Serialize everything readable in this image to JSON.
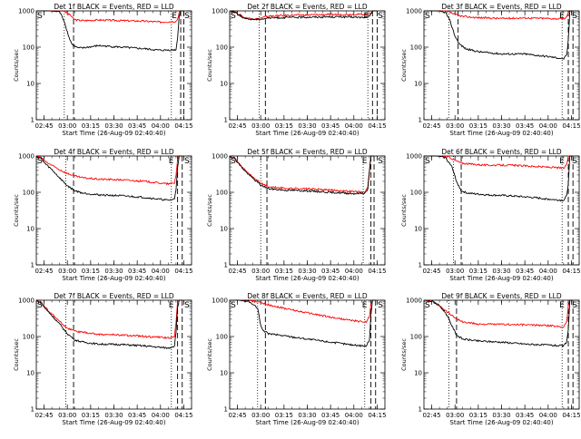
{
  "chart_data": [
    {
      "type": "line",
      "title": "Det 1f BLACK = Events, RED = LLD",
      "xlabel": "Start Time (26-Aug-09 02:40:40)",
      "ylabel": "Counts/sec",
      "y_scale": "log",
      "ylim": [
        1,
        1000
      ],
      "xlim": [
        "02:40",
        "04:20"
      ],
      "x_ticks": [
        "02:45",
        "03:00",
        "03:15",
        "03:30",
        "03:45",
        "04:00",
        "04:15"
      ],
      "y_ticks": [
        "1",
        "10",
        "100",
        "1000"
      ],
      "annotations": [
        "S",
        "E",
        "S"
      ],
      "dotted_lines": [
        "02:58",
        "04:07"
      ],
      "dashed_lines": [
        "03:04",
        "04:13",
        "04:15"
      ],
      "series": [
        {
          "color": "#ff0000",
          "x": [
            "02:40",
            "02:48",
            "02:58",
            "03:02",
            "03:04",
            "03:06",
            "03:10",
            "03:20",
            "03:35",
            "03:50",
            "04:00",
            "04:10",
            "04:11",
            "04:12",
            "04:13",
            "04:14",
            "04:15"
          ],
          "y": [
            1000,
            1000,
            980,
            760,
            600,
            560,
            540,
            560,
            540,
            520,
            490,
            520,
            600,
            900,
            1000,
            1000,
            1000
          ]
        },
        {
          "color": "#000000",
          "x": [
            "02:40",
            "02:48",
            "02:55",
            "02:58",
            "03:01",
            "03:03",
            "03:05",
            "03:07",
            "03:10",
            "03:20",
            "03:35",
            "03:50",
            "04:00",
            "04:10",
            "04:11",
            "04:12",
            "04:13",
            "04:14",
            "04:15"
          ],
          "y": [
            1000,
            1000,
            950,
            520,
            190,
            120,
            105,
            95,
            95,
            110,
            100,
            90,
            82,
            85,
            180,
            700,
            1000,
            1000,
            1000
          ]
        }
      ]
    },
    {
      "type": "line",
      "title": "Det 2f BLACK = Events, RED = LLD",
      "xlabel": "Start Time (26-Aug-09 02:40:40)",
      "ylabel": "Counts/sec",
      "y_scale": "log",
      "ylim": [
        1,
        1000
      ],
      "xlim": [
        "02:40",
        "04:20"
      ],
      "x_ticks": [
        "02:45",
        "03:00",
        "03:15",
        "03:30",
        "03:45",
        "04:00",
        "04:15"
      ],
      "y_ticks": [
        "1",
        "10",
        "100",
        "1000"
      ],
      "annotations": [
        "S",
        "E",
        "S"
      ],
      "dotted_lines": [
        "02:59",
        "04:09"
      ],
      "dashed_lines": [
        "03:03",
        "04:12",
        "04:15"
      ],
      "series": [
        {
          "color": "#ff0000",
          "x": [
            "02:40",
            "02:43",
            "02:46",
            "02:50",
            "02:58",
            "03:05",
            "03:20",
            "03:35",
            "03:50",
            "04:05",
            "04:09",
            "04:11",
            "04:12",
            "04:13",
            "04:15"
          ],
          "y": [
            1000,
            960,
            800,
            640,
            600,
            720,
            760,
            780,
            800,
            800,
            820,
            900,
            1000,
            1000,
            1000
          ]
        },
        {
          "color": "#000000",
          "x": [
            "02:40",
            "02:43",
            "02:46",
            "02:50",
            "02:58",
            "03:05",
            "03:20",
            "03:35",
            "03:50",
            "04:05",
            "04:09",
            "04:11",
            "04:12",
            "04:13",
            "04:15"
          ],
          "y": [
            1000,
            950,
            780,
            600,
            580,
            640,
            660,
            680,
            690,
            660,
            680,
            800,
            1000,
            1000,
            1000
          ]
        }
      ]
    },
    {
      "type": "line",
      "title": "Det 3f BLACK = Events, RED = LLD",
      "xlabel": "Start Time (26-Aug-09 02:40:40)",
      "ylabel": "Counts/sec",
      "y_scale": "log",
      "ylim": [
        1,
        1000
      ],
      "xlim": [
        "02:40",
        "04:20"
      ],
      "x_ticks": [
        "02:45",
        "03:00",
        "03:15",
        "03:30",
        "03:45",
        "04:00",
        "04:15"
      ],
      "y_ticks": [
        "1",
        "10",
        "100",
        "1000"
      ],
      "annotations": [
        "S",
        "E",
        "S"
      ],
      "dotted_lines": [
        "02:56",
        "04:09"
      ],
      "dashed_lines": [
        "03:02",
        "04:13",
        "04:16"
      ],
      "series": [
        {
          "color": "#ff0000",
          "x": [
            "02:40",
            "02:48",
            "02:55",
            "02:57",
            "03:00",
            "03:05",
            "03:15",
            "03:30",
            "03:45",
            "04:00",
            "04:10",
            "04:12",
            "04:13",
            "04:14",
            "04:16"
          ],
          "y": [
            1000,
            1000,
            960,
            900,
            800,
            700,
            650,
            620,
            640,
            620,
            600,
            680,
            900,
            1000,
            1000
          ]
        },
        {
          "color": "#000000",
          "x": [
            "02:40",
            "02:48",
            "02:54",
            "02:57",
            "03:00",
            "03:03",
            "03:07",
            "03:15",
            "03:30",
            "03:45",
            "04:00",
            "04:10",
            "04:12",
            "04:13",
            "04:14",
            "04:16"
          ],
          "y": [
            1000,
            1000,
            900,
            500,
            200,
            120,
            90,
            75,
            65,
            65,
            55,
            48,
            60,
            160,
            1000,
            1000
          ]
        }
      ]
    },
    {
      "type": "line",
      "title": "Det 4f BLACK = Events, RED = LLD",
      "xlabel": "Start Time (26-Aug-09 02:40:40)",
      "ylabel": "Counts/sec",
      "y_scale": "log",
      "ylim": [
        1,
        1000
      ],
      "xlim": [
        "02:40",
        "04:20"
      ],
      "x_ticks": [
        "02:45",
        "03:00",
        "03:15",
        "03:30",
        "03:45",
        "04:00",
        "04:15"
      ],
      "y_ticks": [
        "1",
        "10",
        "100",
        "1000"
      ],
      "annotations": [
        "S",
        "E",
        "S"
      ],
      "dotted_lines": [
        "02:59",
        "04:07"
      ],
      "dashed_lines": [
        "03:04",
        "04:11",
        "04:14"
      ],
      "series": [
        {
          "color": "#ff0000",
          "x": [
            "02:40",
            "02:43",
            "02:46",
            "02:50",
            "02:55",
            "03:00",
            "03:05",
            "03:10",
            "03:20",
            "03:35",
            "03:50",
            "04:05",
            "04:09",
            "04:10",
            "04:11",
            "04:12",
            "04:14"
          ],
          "y": [
            1000,
            900,
            700,
            550,
            420,
            330,
            280,
            250,
            230,
            220,
            200,
            170,
            180,
            300,
            800,
            1000,
            1000
          ]
        },
        {
          "color": "#000000",
          "x": [
            "02:40",
            "02:43",
            "02:46",
            "02:50",
            "02:55",
            "03:00",
            "03:05",
            "03:10",
            "03:20",
            "03:35",
            "03:50",
            "04:05",
            "04:09",
            "04:10",
            "04:11",
            "04:12",
            "04:14"
          ],
          "y": [
            1000,
            850,
            600,
            420,
            250,
            150,
            110,
            95,
            85,
            80,
            72,
            60,
            65,
            120,
            500,
            1000,
            1000
          ]
        }
      ]
    },
    {
      "type": "line",
      "title": "Det 5f BLACK = Events, RED = LLD",
      "xlabel": "Start Time (26-Aug-09 02:40:40)",
      "ylabel": "Counts/sec",
      "y_scale": "log",
      "ylim": [
        1,
        1000
      ],
      "xlim": [
        "02:40",
        "04:20"
      ],
      "x_ticks": [
        "02:45",
        "03:00",
        "03:15",
        "03:30",
        "03:45",
        "04:00",
        "04:15"
      ],
      "y_ticks": [
        "1",
        "10",
        "100",
        "1000"
      ],
      "annotations": [
        "S",
        "E",
        "S"
      ],
      "dotted_lines": [
        "03:00",
        "04:06"
      ],
      "dashed_lines": [
        "03:04",
        "04:11",
        "04:13"
      ],
      "series": [
        {
          "color": "#ff0000",
          "x": [
            "02:40",
            "02:43",
            "02:46",
            "02:50",
            "02:55",
            "03:00",
            "03:05",
            "03:15",
            "03:30",
            "03:45",
            "04:00",
            "04:07",
            "04:09",
            "04:10",
            "04:11",
            "04:13"
          ],
          "y": [
            1000,
            900,
            620,
            400,
            260,
            180,
            140,
            130,
            125,
            115,
            105,
            100,
            140,
            400,
            1000,
            1000
          ]
        },
        {
          "color": "#000000",
          "x": [
            "02:40",
            "02:43",
            "02:46",
            "02:50",
            "02:55",
            "03:00",
            "03:05",
            "03:15",
            "03:30",
            "03:45",
            "04:00",
            "04:07",
            "04:09",
            "04:10",
            "04:11",
            "04:13"
          ],
          "y": [
            1000,
            880,
            600,
            380,
            240,
            160,
            125,
            115,
            110,
            100,
            92,
            95,
            120,
            350,
            1000,
            1000
          ]
        }
      ]
    },
    {
      "type": "line",
      "title": "Det 6f BLACK = Events, RED = LLD",
      "xlabel": "Start Time (26-Aug-09 02:40:40)",
      "ylabel": "Counts/sec",
      "y_scale": "log",
      "ylim": [
        1,
        1000
      ],
      "xlim": [
        "02:40",
        "04:20"
      ],
      "x_ticks": [
        "02:45",
        "03:00",
        "03:15",
        "03:30",
        "03:45",
        "04:00",
        "04:15"
      ],
      "y_ticks": [
        "1",
        "10",
        "100",
        "1000"
      ],
      "annotations": [
        "S",
        "E",
        "S"
      ],
      "dotted_lines": [
        "02:59",
        "04:09"
      ],
      "dashed_lines": [
        "03:04",
        "04:13",
        "04:16"
      ],
      "series": [
        {
          "color": "#ff0000",
          "x": [
            "02:40",
            "02:48",
            "02:56",
            "03:00",
            "03:04",
            "03:10",
            "03:20",
            "03:35",
            "03:50",
            "04:05",
            "04:10",
            "04:12",
            "04:13",
            "04:14",
            "04:16"
          ],
          "y": [
            1000,
            1000,
            950,
            760,
            640,
            600,
            560,
            560,
            520,
            480,
            460,
            600,
            1000,
            1000,
            1000
          ]
        },
        {
          "color": "#000000",
          "x": [
            "02:40",
            "02:48",
            "02:54",
            "02:58",
            "03:01",
            "03:04",
            "03:08",
            "03:20",
            "03:35",
            "03:50",
            "04:05",
            "04:10",
            "04:12",
            "04:13",
            "04:14",
            "04:16"
          ],
          "y": [
            1000,
            1000,
            900,
            500,
            200,
            110,
            95,
            85,
            80,
            72,
            62,
            60,
            80,
            180,
            1000,
            1000
          ]
        }
      ]
    },
    {
      "type": "line",
      "title": "Det 7f BLACK = Events, RED = LLD",
      "xlabel": "Start Time (26-Aug-09 02:40:40)",
      "ylabel": "Counts/sec",
      "y_scale": "log",
      "ylim": [
        1,
        1000
      ],
      "xlim": [
        "02:40",
        "04:20"
      ],
      "x_ticks": [
        "02:45",
        "03:00",
        "03:15",
        "03:30",
        "03:45",
        "04:00",
        "04:15"
      ],
      "y_ticks": [
        "1",
        "10",
        "100",
        "1000"
      ],
      "annotations": [
        "S",
        "E",
        "S"
      ],
      "dotted_lines": [
        "02:59",
        "04:07"
      ],
      "dashed_lines": [
        "03:04",
        "04:11",
        "04:14"
      ],
      "series": [
        {
          "color": "#ff0000",
          "x": [
            "02:40",
            "02:43",
            "02:46",
            "02:50",
            "02:55",
            "03:00",
            "03:05",
            "03:10",
            "03:20",
            "03:35",
            "03:50",
            "04:05",
            "04:09",
            "04:10",
            "04:11",
            "04:12",
            "04:14"
          ],
          "y": [
            1000,
            880,
            620,
            420,
            260,
            170,
            140,
            130,
            115,
            110,
            100,
            92,
            100,
            250,
            900,
            1000,
            1000
          ]
        },
        {
          "color": "#000000",
          "x": [
            "02:40",
            "02:43",
            "02:46",
            "02:50",
            "02:55",
            "03:00",
            "03:05",
            "03:10",
            "03:20",
            "03:35",
            "03:50",
            "04:05",
            "04:09",
            "04:10",
            "04:11",
            "04:12",
            "04:14"
          ],
          "y": [
            1000,
            850,
            580,
            380,
            220,
            120,
            80,
            70,
            62,
            60,
            55,
            48,
            55,
            130,
            600,
            1000,
            1000
          ]
        }
      ]
    },
    {
      "type": "line",
      "title": "Det 8f BLACK = Events, RED = LLD",
      "xlabel": "Start Time (26-Aug-09 02:40:40)",
      "ylabel": "Counts/sec",
      "y_scale": "log",
      "ylim": [
        1,
        1000
      ],
      "xlim": [
        "02:40",
        "04:20"
      ],
      "x_ticks": [
        "02:45",
        "03:00",
        "03:15",
        "03:30",
        "03:45",
        "04:00",
        "04:15"
      ],
      "y_ticks": [
        "1",
        "10",
        "100",
        "1000"
      ],
      "annotations": [
        "S",
        "E",
        "S"
      ],
      "dotted_lines": [
        "02:58",
        "04:07"
      ],
      "dashed_lines": [
        "03:03",
        "04:11",
        "04:14"
      ],
      "series": [
        {
          "color": "#ff0000",
          "x": [
            "02:40",
            "02:45",
            "02:52",
            "02:58",
            "03:02",
            "03:05",
            "03:15",
            "03:30",
            "03:45",
            "04:00",
            "04:08",
            "04:10",
            "04:11",
            "04:12",
            "04:14"
          ],
          "y": [
            1000,
            1000,
            980,
            900,
            800,
            750,
            600,
            450,
            340,
            270,
            250,
            350,
            800,
            1000,
            1000
          ]
        },
        {
          "color": "#000000",
          "x": [
            "02:40",
            "02:45",
            "02:52",
            "02:58",
            "03:00",
            "03:02",
            "03:05",
            "03:15",
            "03:30",
            "03:45",
            "04:00",
            "04:08",
            "04:10",
            "04:11",
            "04:12",
            "04:14"
          ],
          "y": [
            1000,
            1000,
            950,
            600,
            200,
            140,
            120,
            105,
            85,
            70,
            58,
            55,
            80,
            400,
            1000,
            1000
          ]
        }
      ]
    },
    {
      "type": "line",
      "title": "Det 9f BLACK = Events, RED = LLD",
      "xlabel": "Start Time (26-Aug-09 02:40:40)",
      "ylabel": "Counts/sec",
      "y_scale": "log",
      "ylim": [
        1,
        1000
      ],
      "xlim": [
        "02:40",
        "04:20"
      ],
      "x_ticks": [
        "02:45",
        "03:00",
        "03:15",
        "03:30",
        "03:45",
        "04:00",
        "04:15"
      ],
      "y_ticks": [
        "1",
        "10",
        "100",
        "1000"
      ],
      "annotations": [
        "S",
        "E",
        "S"
      ],
      "dotted_lines": [
        "02:56",
        "04:09"
      ],
      "dashed_lines": [
        "03:01",
        "04:13",
        "04:16"
      ],
      "series": [
        {
          "color": "#ff0000",
          "x": [
            "02:40",
            "02:45",
            "02:50",
            "02:55",
            "03:00",
            "03:05",
            "03:15",
            "03:30",
            "03:45",
            "04:00",
            "04:10",
            "04:12",
            "04:13",
            "04:14",
            "04:16"
          ],
          "y": [
            1000,
            950,
            720,
            480,
            330,
            250,
            220,
            215,
            210,
            200,
            185,
            260,
            700,
            1000,
            1000
          ]
        },
        {
          "color": "#000000",
          "x": [
            "02:40",
            "02:45",
            "02:50",
            "02:54",
            "02:58",
            "03:01",
            "03:05",
            "03:15",
            "03:30",
            "03:45",
            "04:00",
            "04:10",
            "04:12",
            "04:13",
            "04:14",
            "04:16"
          ],
          "y": [
            1000,
            950,
            700,
            450,
            200,
            110,
            85,
            75,
            70,
            62,
            58,
            55,
            70,
            160,
            1000,
            1000
          ]
        }
      ]
    }
  ]
}
